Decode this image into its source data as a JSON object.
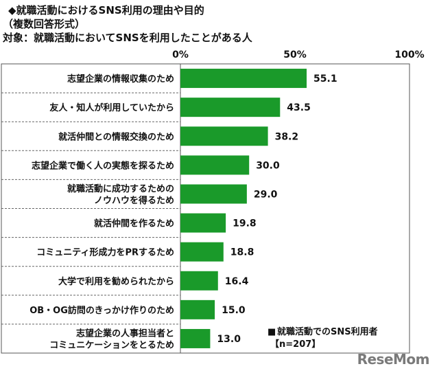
{
  "header": {
    "title": "◆就職活動におけるSNS利用の理由や目的",
    "subtitle": "（複数回答形式）",
    "target": "対象：就職活動においてSNSを利用したことがある人"
  },
  "chart_data": {
    "type": "bar",
    "orientation": "horizontal",
    "categories": [
      [
        "志望企業の情報収集のため"
      ],
      [
        "友人・知人が利用していたから"
      ],
      [
        "就活仲間との情報交換のため"
      ],
      [
        "志望企業で働く人の実態を探るため"
      ],
      [
        "就職活動に成功するための",
        "ノウハウを得るため"
      ],
      [
        "就活仲間を作るため"
      ],
      [
        "コミュニティ形成力をPRするため"
      ],
      [
        "大学で利用を勧められたから"
      ],
      [
        "OB・OG訪問のきっかけ作りのため"
      ],
      [
        "志望企業の人事担当者と",
        "コミュニケーションをとるため"
      ]
    ],
    "series": [
      {
        "name": "就職活動でのSNS利用者",
        "values": [
          55.1,
          43.5,
          38.2,
          30.0,
          29.0,
          19.8,
          18.8,
          16.4,
          15.0,
          13.0
        ],
        "labels": [
          "55.1",
          "43.5",
          "38.2",
          "30.0",
          "29.0",
          "19.8",
          "18.8",
          "16.4",
          "15.0",
          "13.0"
        ]
      }
    ],
    "xlim": [
      0,
      100
    ],
    "xticks": [
      "0%",
      "50%",
      "100%"
    ],
    "legend": {
      "marker": "■",
      "label": "就職活動でのSNS利用者",
      "note": "【n=207】",
      "placement": "bottom-right"
    },
    "colors": {
      "bar": "#1a9a2a",
      "frame": "#555555",
      "separator": "#666666"
    },
    "grid": false
  },
  "watermark": "ReseMom"
}
